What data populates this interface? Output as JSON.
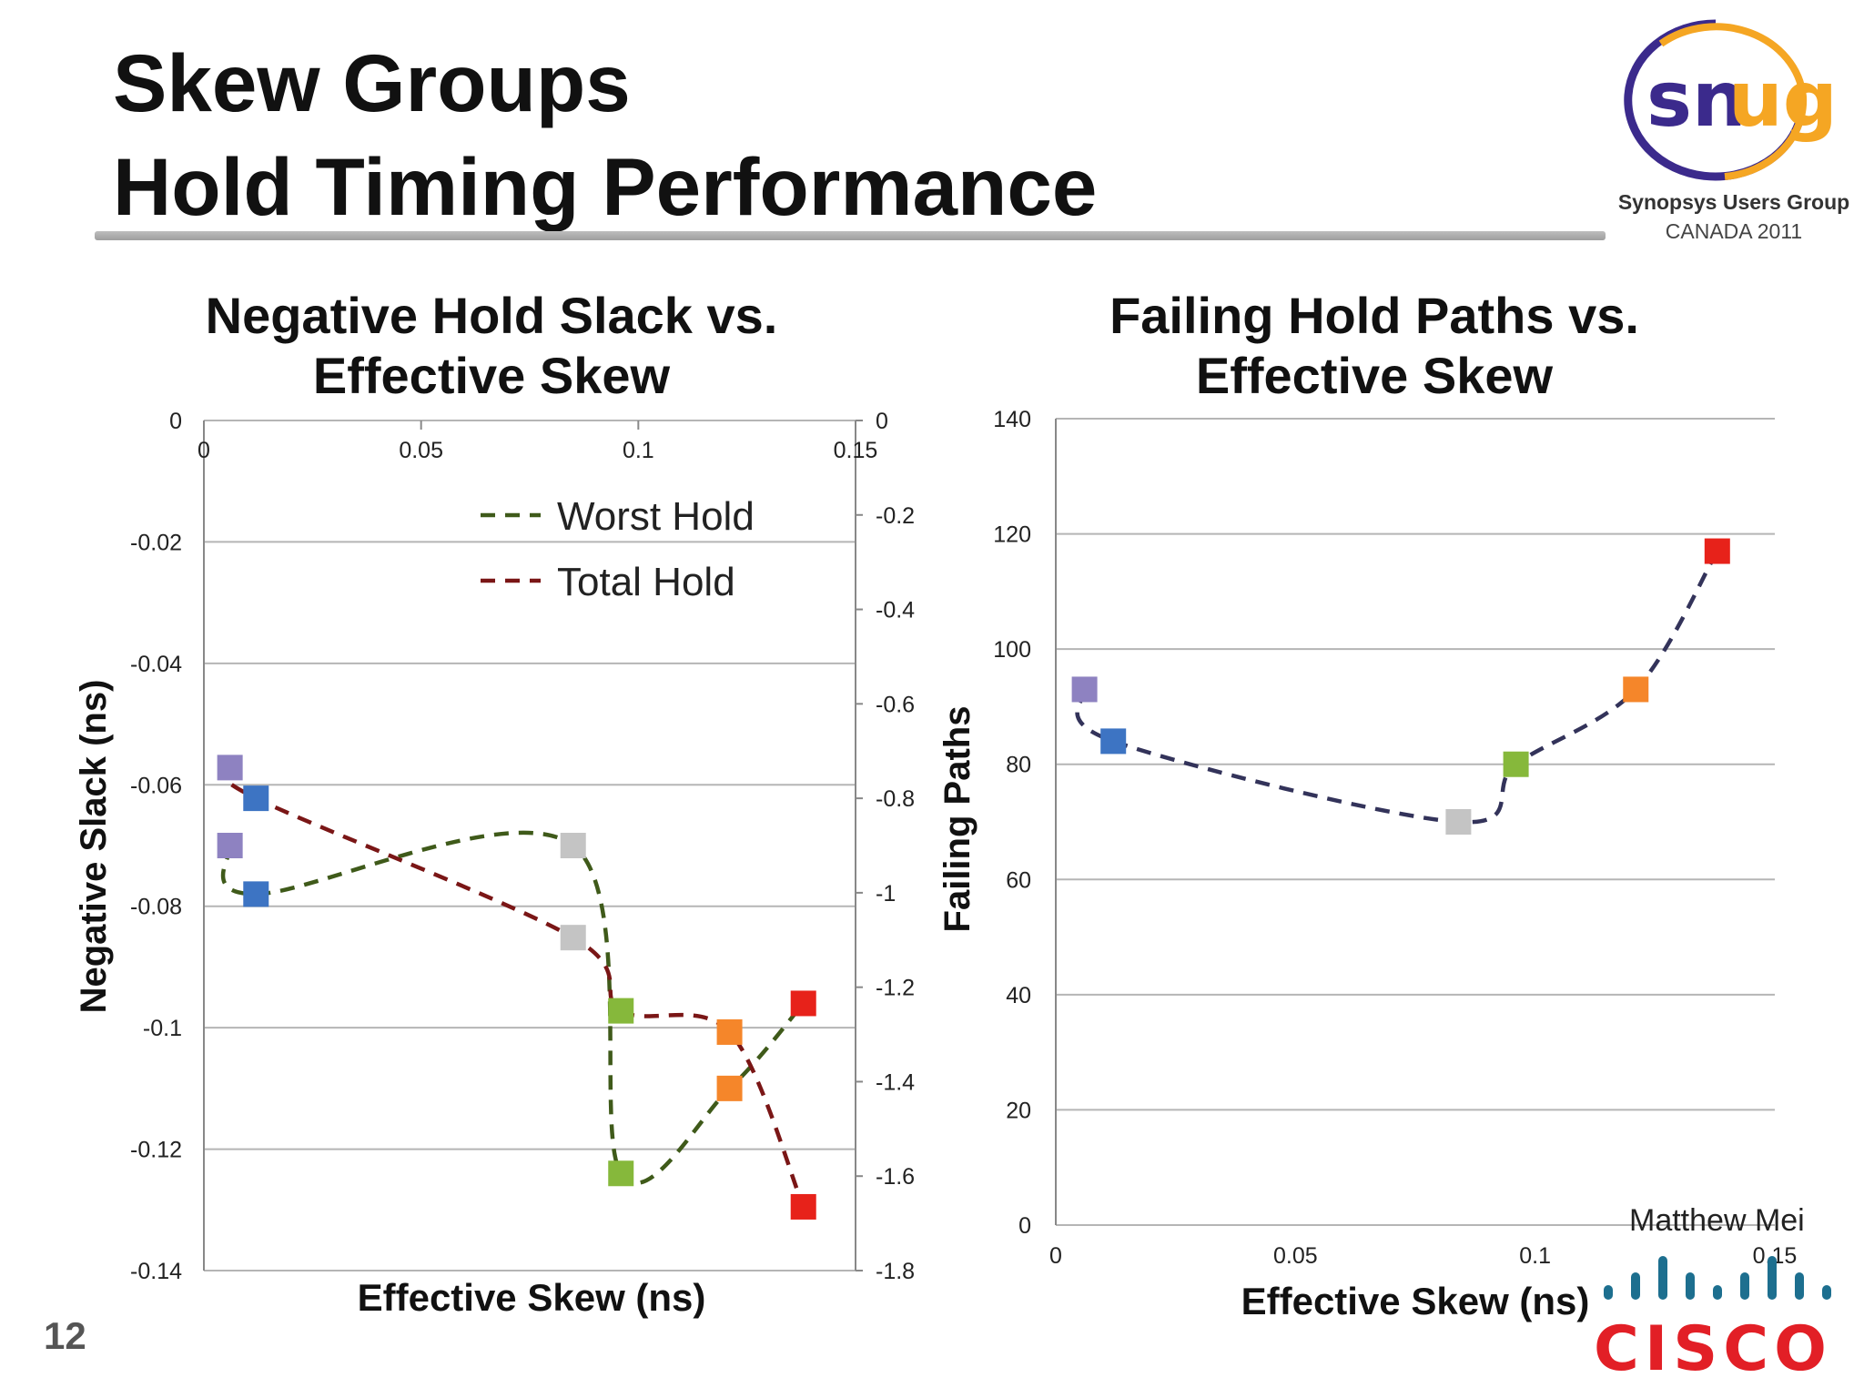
{
  "slide": {
    "title_line1": "Skew Groups",
    "title_line2": "Hold Timing Performance",
    "page_number": "12",
    "author": "Matthew Mei"
  },
  "logos": {
    "snug": {
      "text": "snug",
      "subtitle1": "Synopsys Users Group",
      "subtitle2": "CANADA 2011",
      "colors": {
        "purple": "#3b2a8c",
        "orange": "#f5a623"
      }
    },
    "cisco": {
      "text": "CISCO",
      "colors": {
        "bars": "#1d6f8f",
        "text": "#e21f26"
      }
    }
  },
  "marker_colors": [
    "#8e82c1",
    "#3d74c3",
    "#c4c4c4",
    "#86b83b",
    "#f5862a",
    "#e7221a"
  ],
  "chart_data": [
    {
      "type": "scatter",
      "title_line1": "Negative Hold Slack vs.",
      "title_line2": "Effective Skew",
      "xlabel": "Effective Skew (ns)",
      "ylabel": "Negative Slack (ns)",
      "x_ticks": [
        "0",
        "0.05",
        "0.1",
        "0.15"
      ],
      "xlim": [
        0,
        0.15
      ],
      "y_ticks": [
        "0",
        "-0.02",
        "-0.04",
        "-0.06",
        "-0.08",
        "-0.1",
        "-0.12",
        "-0.14"
      ],
      "ylim": [
        -0.14,
        0
      ],
      "y2_ticks": [
        "0",
        "-0.2",
        "-0.4",
        "-0.6",
        "-0.8",
        "-1",
        "-1.2",
        "-1.4",
        "-1.6",
        "-1.8"
      ],
      "y2lim": [
        -1.8,
        0
      ],
      "grid": true,
      "legend": "top-center",
      "series": [
        {
          "name": "Worst Hold",
          "axis": "left",
          "color": "#3f5a1a",
          "x": [
            0.006,
            0.012,
            0.085,
            0.096,
            0.121,
            0.138
          ],
          "y": [
            -0.07,
            -0.078,
            -0.07,
            -0.124,
            -0.11,
            -0.096
          ]
        },
        {
          "name": "Total Hold",
          "axis": "right",
          "color": "#7a1616",
          "x": [
            0.006,
            0.012,
            0.085,
            0.096,
            0.121,
            0.138
          ],
          "y": [
            -0.735,
            -0.8,
            -1.095,
            -1.25,
            -1.295,
            -1.665
          ]
        }
      ]
    },
    {
      "type": "scatter",
      "title_line1": "Failing Hold Paths vs.",
      "title_line2": "Effective Skew",
      "xlabel": "Effective Skew (ns)",
      "ylabel": "Failing Paths",
      "x_ticks": [
        "0",
        "0.05",
        "0.1",
        "0.15"
      ],
      "xlim": [
        0,
        0.15
      ],
      "y_ticks": [
        "0",
        "20",
        "40",
        "60",
        "80",
        "100",
        "120",
        "140"
      ],
      "ylim": [
        0,
        140
      ],
      "grid": true,
      "series": [
        {
          "color": "#33335a",
          "x": [
            0.006,
            0.012,
            0.084,
            0.096,
            0.121,
            0.138
          ],
          "y": [
            93,
            84,
            70,
            80,
            93,
            117
          ]
        }
      ]
    }
  ]
}
